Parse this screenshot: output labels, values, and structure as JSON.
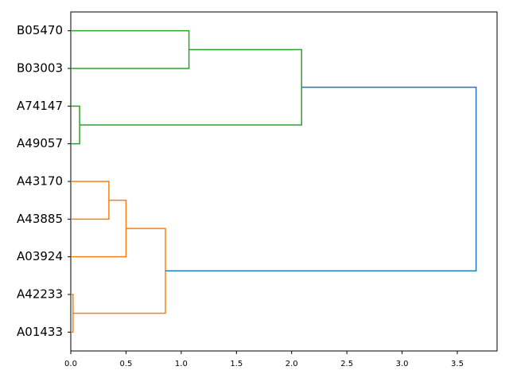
{
  "chart_data": {
    "type": "dendrogram",
    "orientation": "left",
    "leaves": [
      "B05470",
      "B03003",
      "A74147",
      "A49057",
      "A43170",
      "A43885",
      "A03924",
      "A42233",
      "A01433"
    ],
    "links": [
      {
        "children": [
          0,
          1
        ],
        "height": 1.07,
        "color": "#2ca02c"
      },
      {
        "children": [
          2,
          3
        ],
        "height": 0.08,
        "color": "#2ca02c"
      },
      {
        "children": [
          9,
          10
        ],
        "height": 2.09,
        "color": "#2ca02c"
      },
      {
        "children": [
          4,
          5
        ],
        "height": 0.345,
        "color": "#ff7f0e"
      },
      {
        "children": [
          12,
          6
        ],
        "height": 0.5,
        "color": "#ff7f0e"
      },
      {
        "children": [
          7,
          8
        ],
        "height": 0.02,
        "color": "#ff7f0e"
      },
      {
        "children": [
          13,
          14
        ],
        "height": 0.857,
        "color": "#ff7f0e"
      },
      {
        "children": [
          11,
          15
        ],
        "height": 3.67,
        "color": "#1f77b4"
      }
    ],
    "xlim": [
      0,
      3.86
    ],
    "xticks": [
      {
        "value": 0,
        "label": "0.0"
      },
      0.5,
      {
        "value": 1,
        "label": "1.0"
      },
      1.5,
      {
        "value": 2,
        "label": "2.0"
      },
      2.5,
      {
        "value": 3,
        "label": "3.0"
      },
      3.5
    ]
  }
}
